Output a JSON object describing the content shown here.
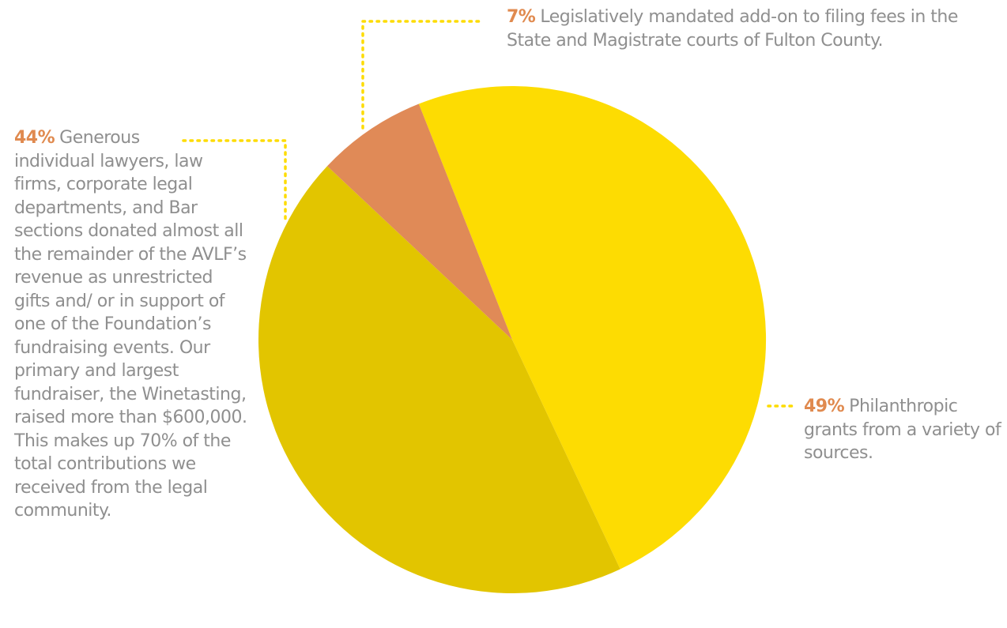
{
  "chart_data": {
    "type": "pie",
    "series": [
      {
        "slices": [
          {
            "key": "philanthropic",
            "value": 49,
            "label": "49%",
            "description": "Philanthropic grants from a variety of sources.",
            "color": "#fddc02"
          },
          {
            "key": "legal_community",
            "value": 44,
            "label": "44%",
            "description_first": "Generous",
            "description_rest": "individual lawyers, law firms, corporate legal departments, and Bar sections donated almost all the remainder of the AVLF’s revenue as unrestricted gifts and/ or in support of one of the Foundation’s fundraising events. Our primary and largest fundraiser, the Winetasting, raised more than $600,000. This makes up 70% of the total contributions we received from the legal community.",
            "color": "#e2c500"
          },
          {
            "key": "filing_fees",
            "value": 7,
            "label": "7%",
            "description": "Legislatively mandated add-on to filing fees in the State and Magistrate courts of Fulton County.",
            "color": "#e08a57"
          }
        ]
      }
    ],
    "colors": {
      "percent_label": "#e08a4f",
      "body_text": "#8f8f8f",
      "leader_line": "#fddc02"
    }
  }
}
